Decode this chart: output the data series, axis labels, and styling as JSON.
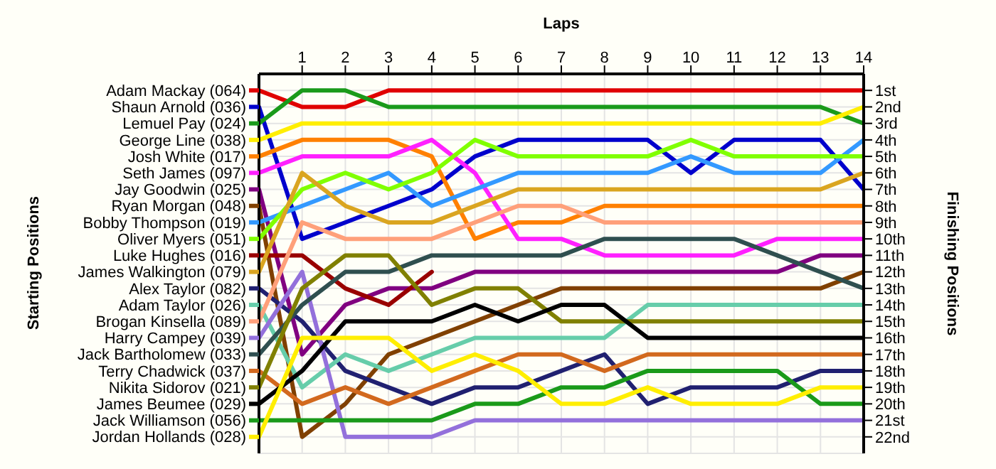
{
  "chart_data": {
    "type": "line",
    "xlabel": "Laps",
    "ylabel": "Finishing Positions",
    "annotations": [
      "Starting Positions"
    ],
    "x": [
      0,
      1,
      2,
      3,
      4,
      5,
      6,
      7,
      8,
      9,
      10,
      11,
      12,
      13,
      14
    ],
    "xlim": [
      0,
      14
    ],
    "xticks": [
      1,
      2,
      3,
      4,
      5,
      6,
      7,
      8,
      9,
      10,
      11,
      12,
      13,
      14
    ],
    "ylim": [
      23,
      0
    ],
    "yticks": [
      {
        "value": 1,
        "label": "1st"
      },
      {
        "value": 2,
        "label": "2nd"
      },
      {
        "value": 3,
        "label": "3rd"
      },
      {
        "value": 4,
        "label": "4th"
      },
      {
        "value": 5,
        "label": "5th"
      },
      {
        "value": 6,
        "label": "6th"
      },
      {
        "value": 7,
        "label": "7th"
      },
      {
        "value": 8,
        "label": "8th"
      },
      {
        "value": 9,
        "label": "9th"
      },
      {
        "value": 10,
        "label": "10th"
      },
      {
        "value": 11,
        "label": "11th"
      },
      {
        "value": 12,
        "label": "12th"
      },
      {
        "value": 13,
        "label": "13th"
      },
      {
        "value": 14,
        "label": "14th"
      },
      {
        "value": 15,
        "label": "15th"
      },
      {
        "value": 16,
        "label": "16th"
      },
      {
        "value": 17,
        "label": "17th"
      },
      {
        "value": 18,
        "label": "18th"
      },
      {
        "value": 19,
        "label": "19th"
      },
      {
        "value": 20,
        "label": "20th"
      },
      {
        "value": 21,
        "label": "21st"
      },
      {
        "value": 22,
        "label": "22nd"
      }
    ],
    "grid": true,
    "legend": "left",
    "marker": "none",
    "line_style": "solid",
    "series": [
      {
        "name": "Adam Mackay (064)",
        "color": "#e00000",
        "values": [
          1,
          2,
          2,
          1,
          1,
          1,
          1,
          1,
          1,
          1,
          1,
          1,
          1,
          1,
          1
        ]
      },
      {
        "name": "Shaun Arnold (036)",
        "color": "#0000cc",
        "values": [
          2,
          10,
          9,
          8,
          7,
          5,
          4,
          4,
          4,
          4,
          6,
          4,
          4,
          4,
          7
        ]
      },
      {
        "name": "Lemuel Pay (024)",
        "color": "#1a9a1a",
        "values": [
          3,
          1,
          1,
          2,
          2,
          2,
          2,
          2,
          2,
          2,
          2,
          2,
          2,
          2,
          3
        ]
      },
      {
        "name": "George Line (038)",
        "color": "#ffee00",
        "values": [
          4,
          3,
          3,
          3,
          3,
          3,
          3,
          3,
          3,
          3,
          3,
          3,
          3,
          3,
          2
        ]
      },
      {
        "name": "Josh White (017)",
        "color": "#ff8000",
        "values": [
          5,
          4,
          4,
          4,
          5,
          10,
          9,
          9,
          8,
          8,
          8,
          8,
          8,
          8,
          8
        ]
      },
      {
        "name": "Seth James (097)",
        "color": "#ff20ff",
        "values": [
          6,
          5,
          5,
          5,
          4,
          6,
          10,
          10,
          11,
          11,
          11,
          11,
          10,
          10,
          10
        ]
      },
      {
        "name": "Jay Goodwin (025)",
        "color": "#800080",
        "values": [
          7,
          17,
          14,
          13,
          13,
          12,
          12,
          12,
          12,
          12,
          12,
          12,
          12,
          11,
          11
        ]
      },
      {
        "name": "Ryan Morgan (048)",
        "color": "#804000",
        "values": [
          8,
          22,
          20,
          17,
          16,
          15,
          14,
          13,
          13,
          13,
          13,
          13,
          13,
          13,
          12
        ]
      },
      {
        "name": "Bobby Thompson (019)",
        "color": "#3399ff",
        "values": [
          9,
          8,
          7,
          6,
          8,
          7,
          6,
          6,
          6,
          6,
          5,
          6,
          6,
          6,
          4
        ]
      },
      {
        "name": "Oliver Myers (051)",
        "color": "#80ff00",
        "values": [
          10,
          7,
          6,
          7,
          6,
          4,
          5,
          5,
          5,
          5,
          4,
          5,
          5,
          5,
          5
        ]
      },
      {
        "name": "Luke Hughes (016)",
        "color": "#990000",
        "values": [
          11,
          11,
          13,
          14,
          12,
          null,
          null,
          null,
          null,
          null,
          null,
          null,
          null,
          null,
          null
        ]
      },
      {
        "name": "James Walkington (079)",
        "color": "#daa520",
        "values": [
          12,
          6,
          8,
          9,
          9,
          8,
          7,
          7,
          7,
          7,
          7,
          7,
          7,
          7,
          6
        ]
      },
      {
        "name": "Alex Taylor (082)",
        "color": "#202070",
        "values": [
          13,
          15,
          18,
          19,
          20,
          19,
          19,
          18,
          17,
          20,
          19,
          19,
          19,
          18,
          18
        ]
      },
      {
        "name": "Adam Taylor (026)",
        "color": "#66cdaa",
        "values": [
          14,
          19,
          17,
          18,
          17,
          16,
          16,
          16,
          16,
          14,
          14,
          14,
          14,
          14,
          14
        ]
      },
      {
        "name": "Brogan Kinsella (089)",
        "color": "#ffa07a",
        "values": [
          15,
          9,
          10,
          10,
          10,
          9,
          8,
          8,
          9,
          9,
          9,
          9,
          9,
          9,
          9
        ]
      },
      {
        "name": "Harry Campey (039)",
        "color": "#9370db",
        "values": [
          16,
          12,
          22,
          22,
          22,
          21,
          21,
          21,
          21,
          21,
          21,
          21,
          21,
          21,
          21
        ]
      },
      {
        "name": "Jack Bartholomew (033)",
        "color": "#2f4f4f",
        "values": [
          17,
          14,
          12,
          12,
          11,
          11,
          11,
          11,
          10,
          10,
          10,
          10,
          11,
          12,
          13
        ]
      },
      {
        "name": "Terry Chadwick (037)",
        "color": "#d2691e",
        "values": [
          18,
          20,
          19,
          20,
          19,
          18,
          17,
          17,
          18,
          17,
          17,
          17,
          17,
          17,
          17
        ]
      },
      {
        "name": "Nikita Sidorov (021)",
        "color": "#808000",
        "values": [
          19,
          13,
          11,
          11,
          14,
          13,
          13,
          15,
          15,
          15,
          15,
          15,
          15,
          15,
          15
        ]
      },
      {
        "name": "James Beumee (029)",
        "color": "#000000",
        "values": [
          20,
          18,
          15,
          15,
          15,
          14,
          15,
          14,
          14,
          16,
          16,
          16,
          16,
          16,
          16
        ]
      },
      {
        "name": "Jack Williamson (056)",
        "color": "#1a9a1a",
        "values": [
          21,
          21,
          21,
          21,
          21,
          20,
          20,
          19,
          19,
          18,
          18,
          18,
          18,
          20,
          20
        ]
      },
      {
        "name": "Jordan Hollands (028)",
        "color": "#ffee00",
        "values": [
          22,
          16,
          16,
          16,
          18,
          17,
          18,
          20,
          20,
          19,
          20,
          20,
          20,
          19,
          19
        ]
      }
    ]
  }
}
